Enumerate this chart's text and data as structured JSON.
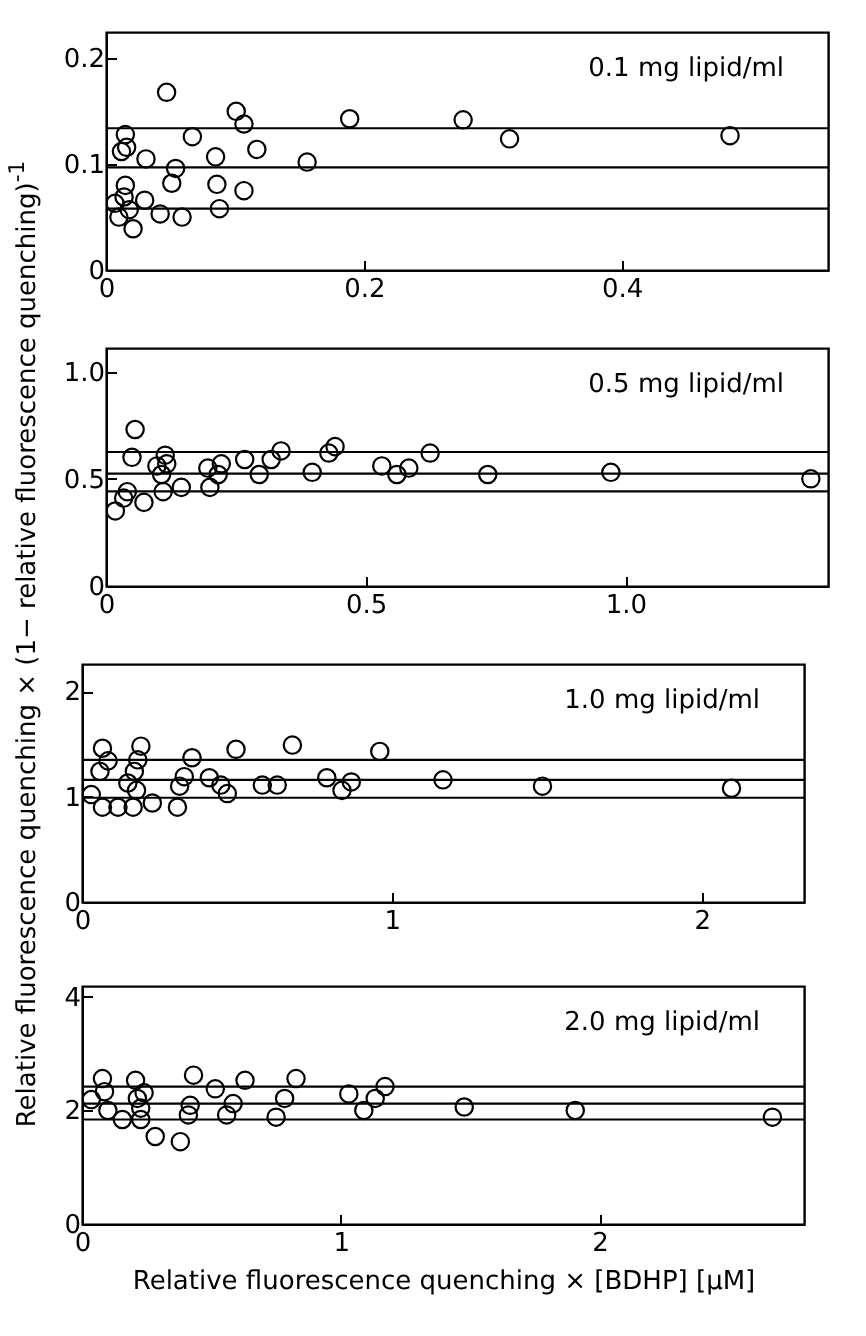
{
  "chart_data": [
    {
      "type": "scatter",
      "ylabel": "Relative fluorescence quenching × (1− relative fluorescence quenching)$^{-1}$",
      "annotations": [
        "0.1 mg lipid/ml"
      ],
      "marker": "circle",
      "xlim": [
        0,
        0.56
      ],
      "xticks": [
        0,
        0.2,
        0.4
      ],
      "ylim": [
        0,
        0.225
      ],
      "yticks": [
        0,
        0.1,
        0.2
      ],
      "series": [
        {
          "color": "#000000",
          "x": [
            0.015,
            0.012,
            0.016,
            0.031,
            0.047,
            0.015,
            0.014,
            0.018,
            0.021,
            0.03,
            0.042,
            0.051,
            0.054,
            0.059,
            0.067,
            0.085,
            0.086,
            0.088,
            0.101,
            0.107,
            0.117,
            0.107,
            0.156,
            0.189,
            0.277,
            0.313,
            0.484,
            0.007,
            0.01
          ],
          "values": [
            0.128,
            0.112,
            0.116,
            0.105,
            0.168,
            0.08,
            0.069,
            0.057,
            0.039,
            0.066,
            0.053,
            0.082,
            0.096,
            0.05,
            0.126,
            0.107,
            0.081,
            0.058,
            0.15,
            0.138,
            0.114,
            0.075,
            0.102,
            0.143,
            0.142,
            0.124,
            0.127,
            0.063,
            0.05
          ]
        }
      ],
      "ref_lines": [
        {
          "axis": "y",
          "value": 0.134
        },
        {
          "axis": "y",
          "value": 0.097
        },
        {
          "axis": "y",
          "value": 0.058
        }
      ]
    },
    {
      "type": "scatter",
      "annotations": [
        "0.5 mg lipid/ml"
      ],
      "marker": "circle",
      "xlim": [
        0,
        1.39
      ],
      "xticks": [
        0,
        0.5,
        {
          "value": 1,
          "label": "1.0"
        }
      ],
      "ylim": [
        0,
        1.11
      ],
      "yticks": [
        0,
        0.5,
        {
          "value": 1,
          "label": "1.0"
        }
      ],
      "series": [
        {
          "color": "#000000",
          "x": [
            0.018,
            0.034,
            0.041,
            0.056,
            0.05,
            0.073,
            0.098,
            0.107,
            0.114,
            0.117,
            0.11,
            0.145,
            0.2,
            0.196,
            0.216,
            0.222,
            0.267,
            0.295,
            0.318,
            0.337,
            0.397,
            0.429,
            0.441,
            0.531,
            0.56,
            0.583,
            0.624,
            0.735,
            0.972,
            1.357
          ],
          "values": [
            0.35,
            0.41,
            0.44,
            0.73,
            0.6,
            0.39,
            0.56,
            0.52,
            0.61,
            0.57,
            0.44,
            0.46,
            0.46,
            0.55,
            0.52,
            0.57,
            0.59,
            0.52,
            0.59,
            0.63,
            0.53,
            0.62,
            0.65,
            0.56,
            0.52,
            0.55,
            0.62,
            0.52,
            0.53,
            0.5
          ]
        }
      ],
      "ref_lines": [
        {
          "axis": "y",
          "value": 0.625
        },
        {
          "axis": "y",
          "value": 0.524
        },
        {
          "axis": "y",
          "value": 0.441
        }
      ]
    },
    {
      "type": "scatter",
      "annotations": [
        "1.0 mg lipid/ml"
      ],
      "marker": "circle",
      "xlim": [
        0,
        2.33
      ],
      "xticks": [
        0,
        1,
        2
      ],
      "ylim": [
        0,
        2.26
      ],
      "yticks": [
        0,
        1,
        2
      ],
      "series": [
        {
          "color": "#000000",
          "x": [
            0.03,
            0.066,
            0.084,
            0.058,
            0.066,
            0.116,
            0.148,
            0.165,
            0.169,
            0.18,
            0.19,
            0.176,
            0.227,
            0.308,
            0.315,
            0.33,
            0.355,
            0.411,
            0.448,
            0.469,
            0.497,
            0.582,
            0.63,
            0.679,
            0.79,
            0.839,
            0.869,
            0.961,
            1.165,
            1.486,
            2.096
          ],
          "values": [
            1.02,
            1.46,
            1.34,
            1.24,
            0.9,
            0.9,
            1.13,
            0.9,
            1.24,
            1.35,
            1.48,
            1.06,
            0.94,
            0.9,
            1.1,
            1.19,
            1.37,
            1.18,
            1.11,
            1.03,
            1.45,
            1.11,
            1.11,
            1.49,
            1.18,
            1.06,
            1.14,
            1.43,
            1.16,
            1.1,
            1.08
          ]
        }
      ],
      "ref_lines": [
        {
          "axis": "y",
          "value": 1.35
        },
        {
          "axis": "y",
          "value": 1.16
        },
        {
          "axis": "y",
          "value": 0.99
        }
      ]
    },
    {
      "type": "scatter",
      "xlabel": "Relative fluorescence quenching × [BDHP] [μM]",
      "annotations": [
        "2.0 mg lipid/ml"
      ],
      "marker": "circle",
      "xlim": [
        0,
        2.79
      ],
      "xticks": [
        0,
        1,
        2
      ],
      "ylim": [
        0,
        4.19
      ],
      "yticks": [
        0,
        2,
        4
      ],
      "series": [
        {
          "color": "#000000",
          "x": [
            0.036,
            0.079,
            0.087,
            0.1,
            0.156,
            0.207,
            0.214,
            0.227,
            0.24,
            0.227,
            0.283,
            0.38,
            0.411,
            0.418,
            0.431,
            0.515,
            0.559,
            0.584,
            0.63,
            0.75,
            0.783,
            0.827,
            1.031,
            1.089,
            1.133,
            1.171,
            1.477,
            1.906,
            2.668
          ],
          "values": [
            2.19,
            2.56,
            2.33,
            2.0,
            1.84,
            2.53,
            2.21,
            2.04,
            2.31,
            1.84,
            1.54,
            1.45,
            1.92,
            2.09,
            2.62,
            2.38,
            1.92,
            2.12,
            2.53,
            1.88,
            2.21,
            2.56,
            2.29,
            2.0,
            2.21,
            2.42,
            2.06,
            2.0,
            1.88
          ]
        }
      ],
      "ref_lines": [
        {
          "axis": "y",
          "value": 2.42
        },
        {
          "axis": "y",
          "value": 2.12
        },
        {
          "axis": "y",
          "value": 1.84
        }
      ]
    }
  ]
}
